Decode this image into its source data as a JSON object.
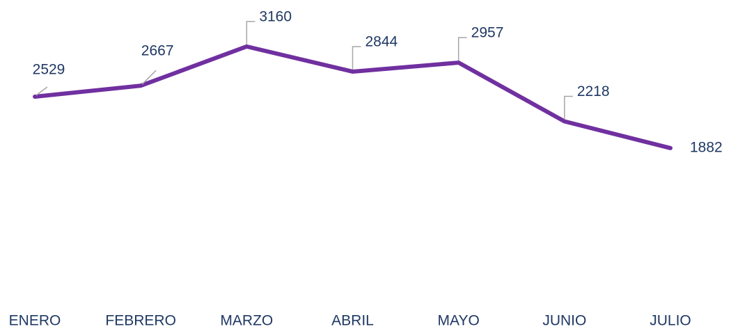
{
  "chart_data": {
    "type": "line",
    "categories": [
      "ENERO",
      "FEBRERO",
      "MARZO",
      "ABRIL",
      "MAYO",
      "JUNIO",
      "JULIO"
    ],
    "series": [
      {
        "color": "#7030a0",
        "values": [
          2529,
          2667,
          3160,
          2844,
          2957,
          2218,
          1882
        ]
      }
    ],
    "ylim": [
      0,
      3500
    ]
  }
}
